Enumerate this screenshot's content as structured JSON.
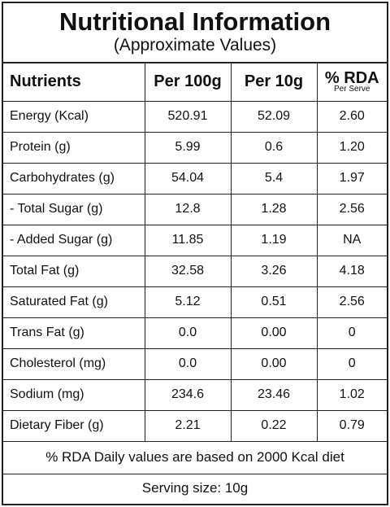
{
  "header": {
    "title": "Nutritional Information",
    "subtitle": "(Approximate Values)"
  },
  "table": {
    "columns": [
      "Nutrients",
      "Per 100g",
      "Per 10g",
      "% RDA"
    ],
    "rda_note": "Per Serve",
    "rows": [
      [
        "Energy (Kcal)",
        "520.91",
        "52.09",
        "2.60"
      ],
      [
        "Protein (g)",
        "5.99",
        "0.6",
        "1.20"
      ],
      [
        "Carbohydrates (g)",
        "54.04",
        "5.4",
        "1.97"
      ],
      [
        "- Total Sugar (g)",
        "12.8",
        "1.28",
        "2.56"
      ],
      [
        "- Added Sugar (g)",
        "11.85",
        "1.19",
        "NA"
      ],
      [
        "Total Fat (g)",
        "32.58",
        "3.26",
        "4.18"
      ],
      [
        "Saturated Fat (g)",
        "5.12",
        "0.51",
        "2.56"
      ],
      [
        "Trans Fat (g)",
        "0.0",
        "0.00",
        "0"
      ],
      [
        "Cholesterol (mg)",
        "0.0",
        "0.00",
        "0"
      ],
      [
        "Sodium (mg)",
        "234.6",
        "23.46",
        "1.02"
      ],
      [
        "Dietary Fiber (g)",
        "2.21",
        "0.22",
        "0.79"
      ]
    ]
  },
  "footer": {
    "note": "% RDA Daily values are based on 2000 Kcal diet",
    "serving_size": "Serving size: 10g"
  }
}
